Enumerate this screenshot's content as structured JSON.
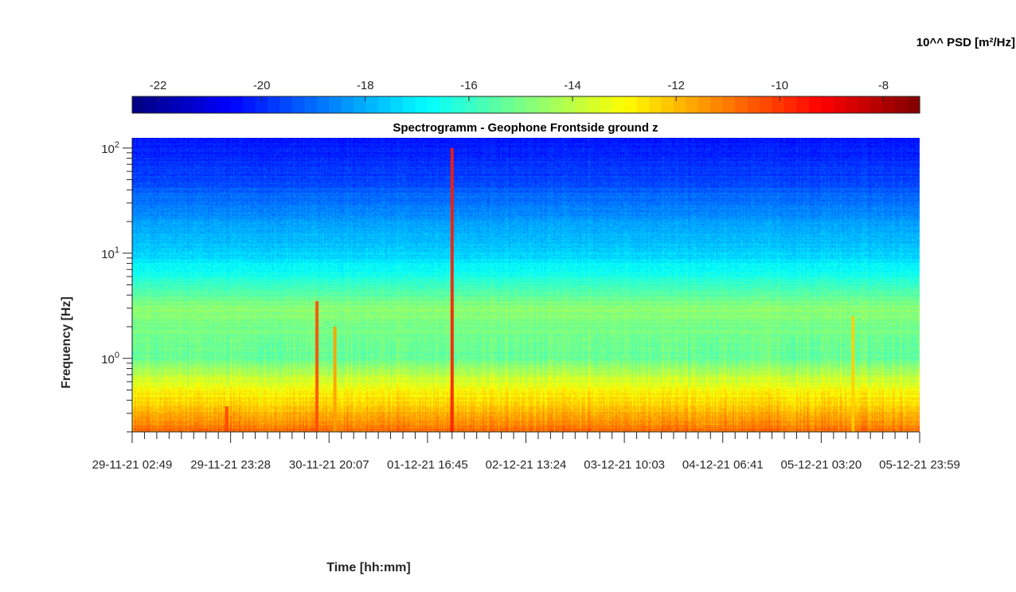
{
  "chart_data": {
    "type": "heatmap",
    "title": "Spectrogramm - Geophone Frontside ground z",
    "xlabel": "Time [hh:mm]",
    "ylabel": "Frequency [Hz]",
    "x_ticklabels": [
      "29-11-21 02:49",
      "29-11-21 23:28",
      "30-11-21 20:07",
      "01-12-21 16:45",
      "02-12-21 13:24",
      "03-12-21 10:03",
      "04-12-21 06:41",
      "05-12-21 03:20",
      "05-12-21 23:59"
    ],
    "xlim": [
      "29-11-21 02:49",
      "05-12-21 23:59"
    ],
    "y_scale": "log",
    "ylim": [
      0.2,
      125
    ],
    "y_ticklabels": [
      {
        "value": 1,
        "base": "10",
        "exp": "0"
      },
      {
        "value": 10,
        "base": "10",
        "exp": "1"
      },
      {
        "value": 100,
        "base": "10",
        "exp": "2"
      }
    ],
    "colorbar": {
      "title": "10^^ PSD [m²/Hz]",
      "colormap": "jet",
      "clim": [
        -22.5,
        -7.3
      ],
      "ticks": [
        -22,
        -20,
        -18,
        -16,
        -14,
        -12,
        -10,
        -8
      ],
      "tick_labels": [
        "-22",
        "-20",
        "-18",
        "-16",
        "-14",
        "-12",
        "-10",
        "-8"
      ],
      "levels": 64,
      "location": "top"
    },
    "spectrum_profile": [
      {
        "f": 0.2,
        "log10_psd": -10.8
      },
      {
        "f": 0.3,
        "log10_psd": -11.8
      },
      {
        "f": 0.5,
        "log10_psd": -13.0
      },
      {
        "f": 0.8,
        "log10_psd": -14.5
      },
      {
        "f": 1.0,
        "log10_psd": -15.3
      },
      {
        "f": 2.0,
        "log10_psd": -15.0
      },
      {
        "f": 3.0,
        "log10_psd": -14.7
      },
      {
        "f": 5.0,
        "log10_psd": -16.0
      },
      {
        "f": 10,
        "log10_psd": -17.5
      },
      {
        "f": 20,
        "log10_psd": -18.2
      },
      {
        "f": 50,
        "log10_psd": -19.6
      },
      {
        "f": 125,
        "log10_psd": -20.3
      }
    ],
    "transient_events": [
      {
        "time": "29-11-21 22:40",
        "fmax": 0.35,
        "log10_psd": -10.2
      },
      {
        "time": "30-11-21 17:35",
        "fmax": 3.5,
        "log10_psd": -10.3
      },
      {
        "time": "30-11-21 21:20",
        "fmax": 2.0,
        "log10_psd": -11.6
      },
      {
        "time": "01-12-21 21:55",
        "fmax": 100,
        "log10_psd": -9.6
      },
      {
        "time": "05-12-21 10:00",
        "fmax": 2.5,
        "log10_psd": -12.3
      }
    ],
    "grid": false
  }
}
